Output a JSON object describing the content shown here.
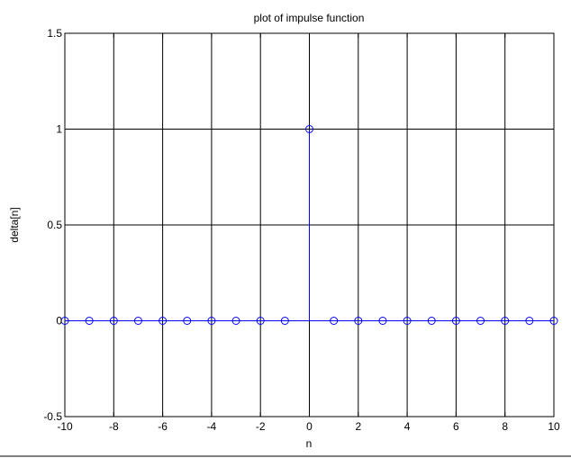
{
  "chart_data": {
    "type": "scatter",
    "style": "stem",
    "title": "plot of impulse function",
    "xlabel": "n",
    "ylabel": "delta[n]",
    "xlim": [
      -10,
      10
    ],
    "ylim": [
      -0.5,
      1.5
    ],
    "xticks": [
      "-10",
      "-8",
      "-6",
      "-4",
      "-2",
      "0",
      "2",
      "4",
      "6",
      "8",
      "10"
    ],
    "yticks": [
      "-0.5",
      "0",
      "0.5",
      "1",
      "1.5"
    ],
    "grid": true,
    "series": [
      {
        "x": [
          -10,
          -9,
          -8,
          -7,
          -6,
          -5,
          -4,
          -3,
          -2,
          -1,
          0,
          1,
          2,
          3,
          4,
          5,
          6,
          7,
          8,
          9,
          10
        ],
        "y": [
          0,
          0,
          0,
          0,
          0,
          0,
          0,
          0,
          0,
          0,
          1,
          0,
          0,
          0,
          0,
          0,
          0,
          0,
          0,
          0,
          0
        ],
        "color": "#0000ff"
      }
    ]
  }
}
